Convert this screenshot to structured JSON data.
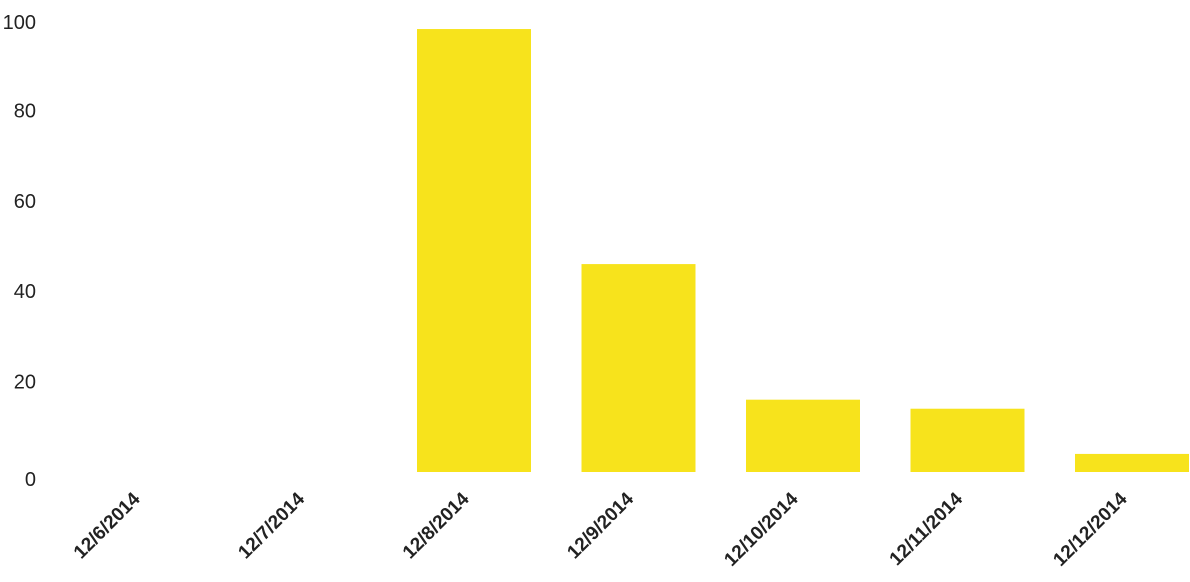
{
  "chart_data": {
    "type": "bar",
    "categories": [
      "12/6/2014",
      "12/7/2014",
      "12/8/2014",
      "12/9/2014",
      "12/10/2014",
      "12/11/2014",
      "12/12/2014"
    ],
    "values": [
      0,
      0,
      98,
      46,
      16,
      14,
      4
    ],
    "ylim": [
      0,
      100
    ],
    "yticks": [
      0,
      20,
      40,
      60,
      80,
      100
    ],
    "title": "",
    "xlabel": "",
    "ylabel": "",
    "bar_color": "#f7e31c",
    "tick_color": "#222222",
    "grid": false,
    "legend": "none"
  }
}
